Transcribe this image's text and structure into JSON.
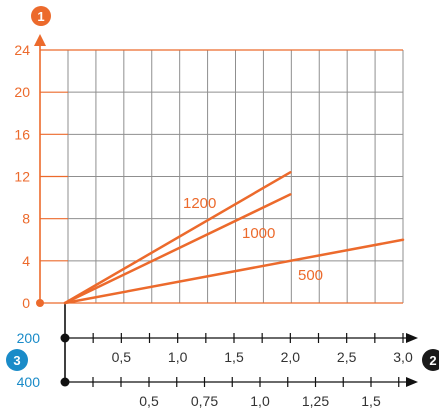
{
  "chart_data": {
    "type": "line",
    "colors": {
      "orange": "#ec6a2c",
      "blue": "#1a8bc8",
      "grid": "#8f8f8f",
      "axis": "#111111"
    },
    "markers": {
      "y_axis": "1",
      "x_axis": "2",
      "secondary_axis": "3"
    },
    "y_ticks": [
      "0",
      "4",
      "8",
      "12",
      "16",
      "20",
      "24"
    ],
    "ylim": [
      0,
      24
    ],
    "xlim": [
      0,
      3.0
    ],
    "x_axis_200": {
      "label": "200",
      "ticks": [
        "0,5",
        "1,0",
        "1,5",
        "2,0",
        "2,5",
        "3,0"
      ],
      "tick_values": [
        0.5,
        1.0,
        1.5,
        2.0,
        2.5,
        3.0
      ]
    },
    "x_axis_400": {
      "label": "400",
      "ticks": [
        "0,5",
        "0,75",
        "1,0",
        "1,25",
        "1,5"
      ],
      "tick_values": [
        0.5,
        0.75,
        1.0,
        1.25,
        1.5
      ]
    },
    "series": [
      {
        "name": "1200",
        "x": [
          0,
          2.0
        ],
        "y": [
          0,
          12.4
        ]
      },
      {
        "name": "1000",
        "x": [
          0,
          2.0
        ],
        "y": [
          0,
          10.3
        ]
      },
      {
        "name": "500",
        "x": [
          0,
          3.0
        ],
        "y": [
          0,
          6.0
        ]
      }
    ]
  }
}
